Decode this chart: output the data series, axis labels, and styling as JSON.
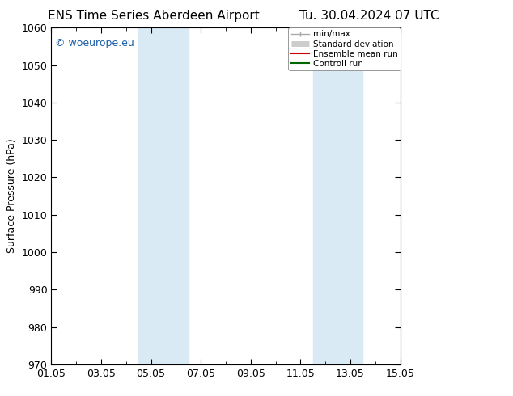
{
  "title": "ENS Time Series Aberdeen Airport",
  "title2": "Tu. 30.04.2024 07 UTC",
  "ylabel": "Surface Pressure (hPa)",
  "ylim": [
    970,
    1060
  ],
  "yticks": [
    970,
    980,
    990,
    1000,
    1010,
    1020,
    1030,
    1040,
    1050,
    1060
  ],
  "xtick_labels": [
    "01.05",
    "03.05",
    "05.05",
    "07.05",
    "09.05",
    "11.05",
    "13.05",
    "15.05"
  ],
  "xtick_positions": [
    0,
    2,
    4,
    6,
    8,
    10,
    12,
    14
  ],
  "shaded_bands": [
    {
      "x_start": 3.5,
      "x_end": 4.5,
      "color": "#daeaf5"
    },
    {
      "x_start": 4.5,
      "x_end": 5.5,
      "color": "#daeaf5"
    },
    {
      "x_start": 10.5,
      "x_end": 11.5,
      "color": "#daeaf5"
    },
    {
      "x_start": 11.5,
      "x_end": 12.5,
      "color": "#daeaf5"
    }
  ],
  "watermark": "© woeurope.eu",
  "watermark_color": "#1a5fa8",
  "legend_items": [
    {
      "label": "min/max",
      "color": "#aaaaaa",
      "lw": 1.0
    },
    {
      "label": "Standard deviation",
      "color": "#cccccc",
      "lw": 5
    },
    {
      "label": "Ensemble mean run",
      "color": "#cc0000",
      "lw": 1.5
    },
    {
      "label": "Controll run",
      "color": "#006600",
      "lw": 1.5
    }
  ],
  "bg_color": "#ffffff",
  "font_family": "DejaVu Sans",
  "title_fontsize": 11,
  "label_fontsize": 9,
  "tick_fontsize": 9
}
